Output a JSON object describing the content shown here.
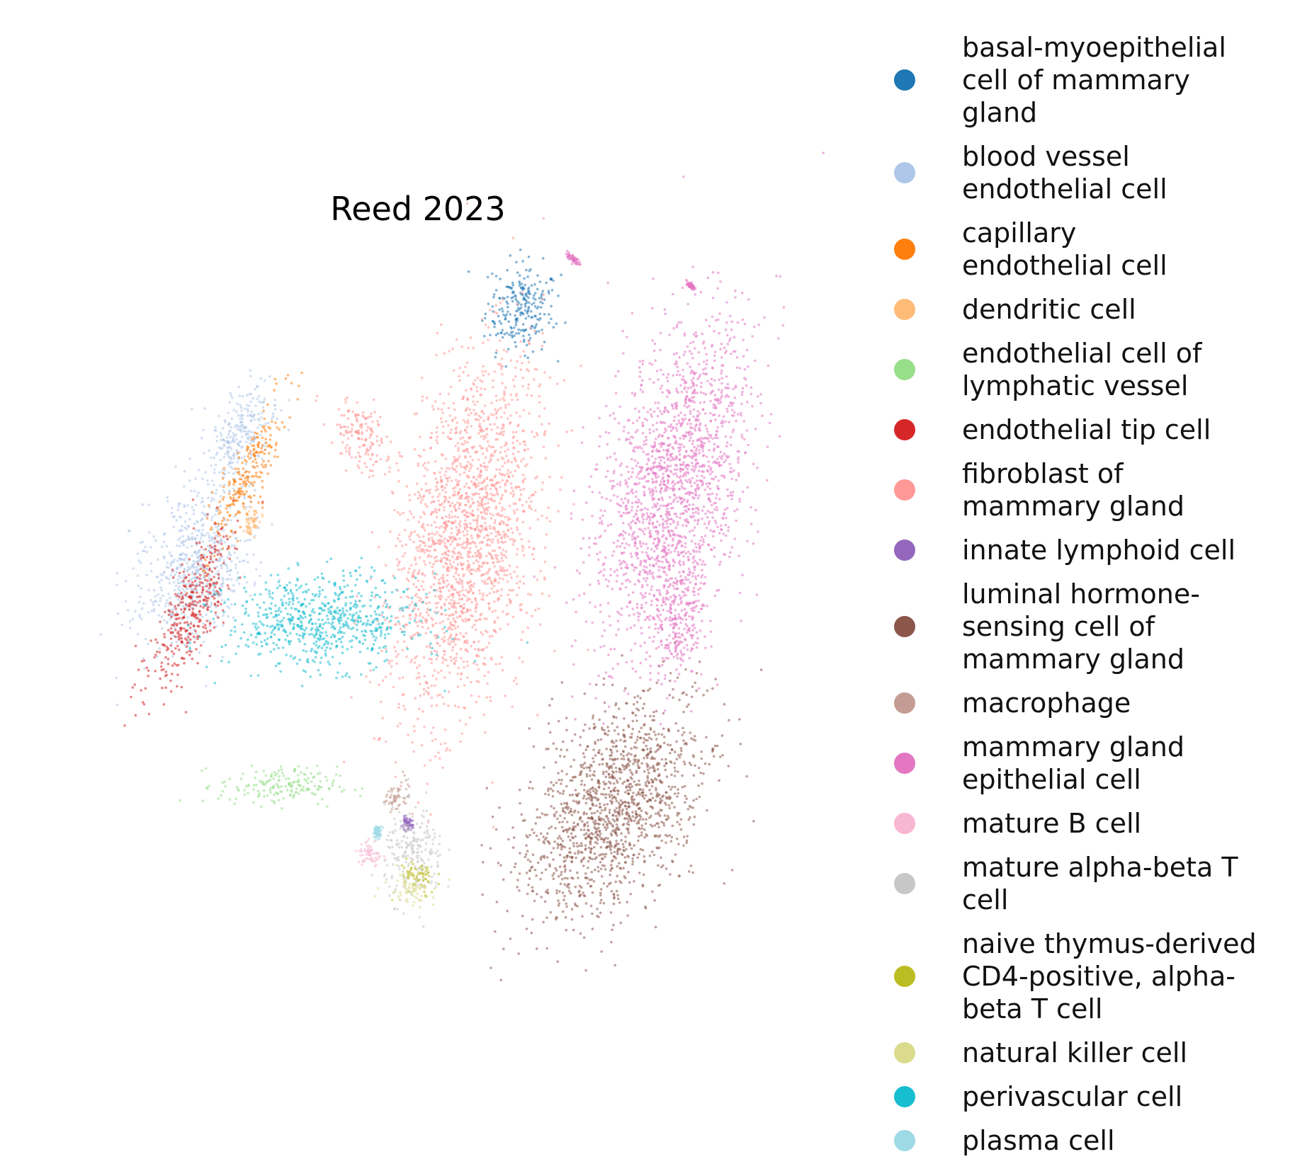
{
  "chart_data": {
    "type": "scatter",
    "title": "Reed 2023",
    "xlabel": "",
    "ylabel": "",
    "grid": false,
    "axes_visible": false,
    "legend_placement": "right",
    "legend": [
      {
        "label": "basal-myoepithelial\ncell of mammary\ngland",
        "color": "#1f77b4"
      },
      {
        "label": "blood vessel\nendothelial cell",
        "color": "#aec7e8"
      },
      {
        "label": "capillary\nendothelial cell",
        "color": "#ff7f0e"
      },
      {
        "label": "dendritic cell",
        "color": "#ffbb78"
      },
      {
        "label": "endothelial cell of\nlymphatic vessel",
        "color": "#98df8a"
      },
      {
        "label": "endothelial tip cell",
        "color": "#d62728"
      },
      {
        "label": "fibroblast of\nmammary gland",
        "color": "#ff9896"
      },
      {
        "label": "innate lymphoid cell",
        "color": "#9467bd"
      },
      {
        "label": "luminal hormone-\nsensing cell of\nmammary gland",
        "color": "#8c564b"
      },
      {
        "label": "macrophage",
        "color": "#c49c94"
      },
      {
        "label": "mammary gland\nepithelial cell",
        "color": "#e377c2"
      },
      {
        "label": "mature B cell",
        "color": "#f7b6d2"
      },
      {
        "label": "mature alpha-beta T\ncell",
        "color": "#c7c7c7"
      },
      {
        "label": "naive thymus-derived\nCD4-positive, alpha-\nbeta T cell",
        "color": "#bcbd22"
      },
      {
        "label": "natural killer cell",
        "color": "#dbdb8d"
      },
      {
        "label": "perivascular cell",
        "color": "#17becf"
      },
      {
        "label": "plasma cell",
        "color": "#9edae5"
      }
    ],
    "clusters": [
      {
        "legend_index": 0,
        "center": [
          0.28,
          0.87
        ],
        "spread": [
          0.045,
          0.06
        ],
        "angle": -10
      },
      {
        "legend_index": 1,
        "center": [
          -0.61,
          0.18
        ],
        "spread": [
          0.07,
          0.1
        ],
        "angle": -25
      },
      {
        "legend_index": 1,
        "center": [
          -0.49,
          0.52
        ],
        "spread": [
          0.04,
          0.08
        ],
        "angle": -30
      },
      {
        "legend_index": 2,
        "center": [
          -0.47,
          0.42
        ],
        "spread": [
          0.025,
          0.11
        ],
        "angle": -25
      },
      {
        "legend_index": 3,
        "center": [
          -0.45,
          0.31
        ],
        "spread": [
          0.01,
          0.02
        ],
        "angle": -20
      },
      {
        "legend_index": 4,
        "center": [
          -0.38,
          -0.38
        ],
        "spread": [
          0.08,
          0.025
        ],
        "angle": 0
      },
      {
        "legend_index": 5,
        "center": [
          -0.61,
          0.09
        ],
        "spread": [
          0.035,
          0.12
        ],
        "angle": -25
      },
      {
        "legend_index": 6,
        "center": [
          0.13,
          0.27
        ],
        "spread": [
          0.09,
          0.24
        ],
        "angle": -12
      },
      {
        "legend_index": 6,
        "center": [
          -0.16,
          0.53
        ],
        "spread": [
          0.035,
          0.05
        ],
        "angle": 30
      },
      {
        "legend_index": 7,
        "center": [
          -0.03,
          -0.48
        ],
        "spread": [
          0.008,
          0.008
        ],
        "angle": 0
      },
      {
        "legend_index": 8,
        "center": [
          0.53,
          -0.44
        ],
        "spread": [
          0.1,
          0.16
        ],
        "angle": -35
      },
      {
        "legend_index": 9,
        "center": [
          -0.06,
          -0.41
        ],
        "spread": [
          0.012,
          0.02
        ],
        "angle": -40
      },
      {
        "legend_index": 10,
        "center": [
          0.69,
          0.41
        ],
        "spread": [
          0.09,
          0.22
        ],
        "angle": -15
      },
      {
        "legend_index": 10,
        "center": [
          0.71,
          0.06
        ],
        "spread": [
          0.035,
          0.08
        ],
        "angle": -10
      },
      {
        "legend_index": 10,
        "center": [
          0.42,
          1.0
        ],
        "spread": [
          0.012,
          0.004
        ],
        "angle": -40
      },
      {
        "legend_index": 10,
        "center": [
          0.74,
          0.93
        ],
        "spread": [
          0.006,
          0.003
        ],
        "angle": -40
      },
      {
        "legend_index": 11,
        "center": [
          -0.13,
          -0.56
        ],
        "spread": [
          0.016,
          0.02
        ],
        "angle": 0
      },
      {
        "legend_index": 12,
        "center": [
          -0.01,
          -0.56
        ],
        "spread": [
          0.04,
          0.06
        ],
        "angle": 0
      },
      {
        "legend_index": 13,
        "center": [
          0.0,
          -0.62
        ],
        "spread": [
          0.025,
          0.025
        ],
        "angle": 0
      },
      {
        "legend_index": 14,
        "center": [
          -0.02,
          -0.64
        ],
        "spread": [
          0.035,
          0.025
        ],
        "angle": 0
      },
      {
        "legend_index": 15,
        "center": [
          -0.26,
          0.05
        ],
        "spread": [
          0.13,
          0.06
        ],
        "angle": 0
      },
      {
        "legend_index": 16,
        "center": [
          -0.11,
          -0.5
        ],
        "spread": [
          0.006,
          0.008
        ],
        "angle": 0
      }
    ]
  }
}
